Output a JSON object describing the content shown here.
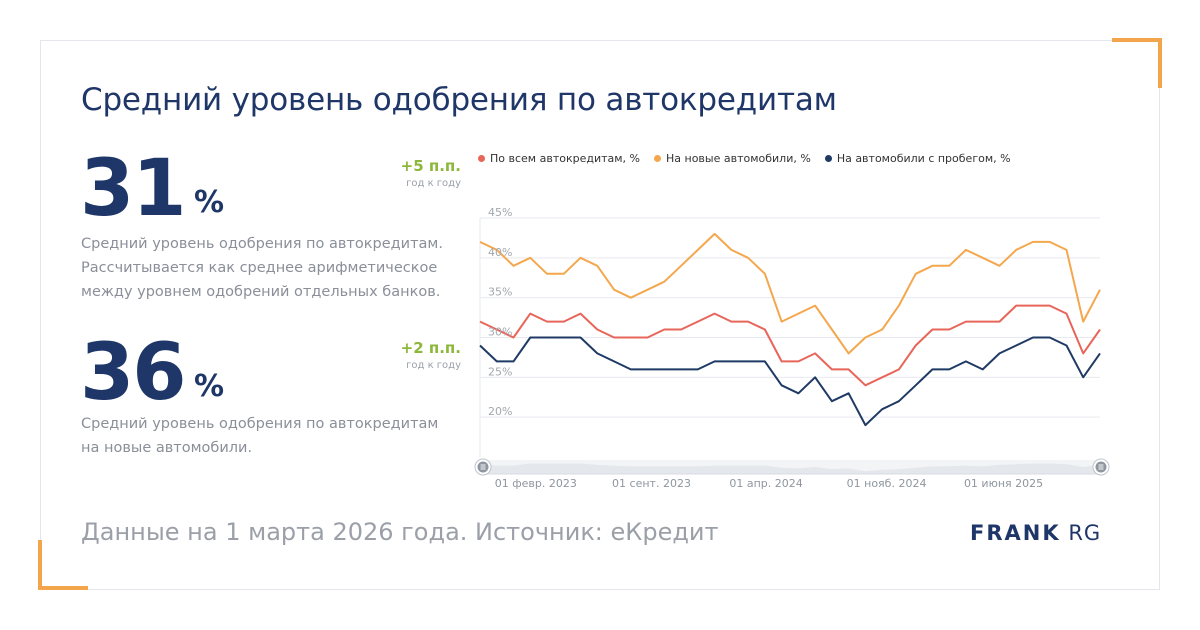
{
  "title": "Средний уровень одобрения по автокредитам",
  "metrics": [
    {
      "value": "31",
      "unit": "%",
      "delta": "+5 п.п.",
      "delta_sub": "год к году",
      "description_lines": [
        "Средний уровень одобрения по автокредитам.",
        "Рассчитывается как среднее арифметическое",
        "между уровнем одобрений отдельных банков."
      ]
    },
    {
      "value": "36",
      "unit": "%",
      "delta": "+2 п.п.",
      "delta_sub": "год к году",
      "description_lines": [
        "Средний уровень одобрения по автокредитам",
        "на новые автомобили."
      ]
    }
  ],
  "footer": "Данные на 1 марта 2026 года. Источник: еКредит",
  "logo": {
    "bold": "FRANK",
    "light": "RG"
  },
  "colors": {
    "accent": "#f2a54a",
    "brand": "#1f3668",
    "positive": "#8db73b"
  },
  "chart_data": {
    "type": "line",
    "title": "",
    "xlabel": "",
    "ylabel": "",
    "ylim": [
      15,
      45
    ],
    "yticks": [
      20,
      25,
      30,
      35,
      40,
      45
    ],
    "ytick_labels": [
      "20%",
      "25%",
      "30%",
      "35%",
      "40%",
      "45%"
    ],
    "grid": true,
    "legend_position": "top",
    "x_start_index": 0,
    "x_tick_labels": [
      {
        "index": 1,
        "label": "01 февр. 2023"
      },
      {
        "index": 8,
        "label": "01 сент. 2023"
      },
      {
        "index": 15,
        "label": "01 апр. 2024"
      },
      {
        "index": 22,
        "label": "01 нояб. 2024"
      },
      {
        "index": 29,
        "label": "01 июня 2025"
      }
    ],
    "series": [
      {
        "name": "По всем автокредитам, %",
        "color": "#e8655a",
        "values": [
          32,
          31,
          30,
          33,
          32,
          32,
          33,
          31,
          30,
          30,
          30,
          31,
          31,
          32,
          33,
          32,
          32,
          31,
          27,
          27,
          28,
          26,
          26,
          24,
          25,
          26,
          29,
          31,
          31,
          32,
          32,
          32,
          34,
          34,
          34,
          33,
          28,
          31
        ]
      },
      {
        "name": "На новые автомобили, %",
        "color": "#f4a74d",
        "values": [
          42,
          41,
          39,
          40,
          38,
          38,
          40,
          39,
          36,
          35,
          36,
          37,
          39,
          41,
          43,
          41,
          40,
          38,
          32,
          33,
          34,
          31,
          28,
          30,
          31,
          34,
          38,
          39,
          39,
          41,
          40,
          39,
          41,
          42,
          42,
          41,
          32,
          36
        ]
      },
      {
        "name": "На автомобили с пробегом, %",
        "color": "#1f3a64",
        "values": [
          29,
          27,
          27,
          30,
          30,
          30,
          30,
          28,
          27,
          26,
          26,
          26,
          26,
          26,
          27,
          27,
          27,
          27,
          24,
          23,
          25,
          22,
          23,
          19,
          21,
          22,
          24,
          26,
          26,
          27,
          26,
          28,
          29,
          30,
          30,
          29,
          25,
          28
        ]
      }
    ],
    "navigator": {
      "handle_icon": "drag-handle-icon"
    }
  }
}
